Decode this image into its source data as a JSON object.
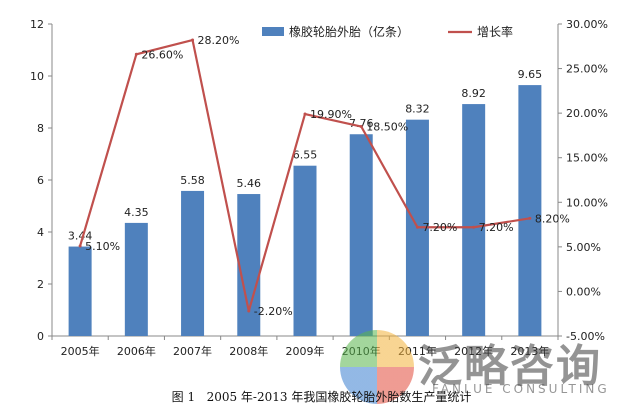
{
  "chart_data": {
    "type": "bar",
    "categories": [
      "2005年",
      "2006年",
      "2007年",
      "2008年",
      "2009年",
      "2010年",
      "2011年",
      "2012年",
      "2013年"
    ],
    "series": [
      {
        "name": "橡胶轮胎外胎（亿条）",
        "type": "bar",
        "axis": "left",
        "color": "#4f81bd",
        "values": [
          3.44,
          4.35,
          5.58,
          5.46,
          6.55,
          7.76,
          8.32,
          8.92,
          9.65
        ],
        "labels": [
          "3.44",
          "4.35",
          "5.58",
          "5.46",
          "6.55",
          "7.76",
          "8.32",
          "8.92",
          "9.65"
        ]
      },
      {
        "name": "增长率",
        "type": "line",
        "axis": "right",
        "color": "#c0504d",
        "values": [
          5.1,
          26.6,
          28.2,
          -2.2,
          19.9,
          18.5,
          7.2,
          7.2,
          8.2
        ],
        "labels": [
          "5.10%",
          "26.60%",
          "28.20%",
          "-2.20%",
          "19.90%",
          "18.50%",
          "7.20%",
          "7.20%",
          "8.20%"
        ]
      }
    ],
    "ylim_left": [
      0,
      12
    ],
    "yticks_left": [
      "0",
      "2",
      "4",
      "6",
      "8",
      "10",
      "12"
    ],
    "ylim_right": [
      -5,
      30
    ],
    "yticks_right": [
      "-5.00%",
      "0.00%",
      "5.00%",
      "10.00%",
      "15.00%",
      "20.00%",
      "25.00%",
      "30.00%"
    ],
    "grid": false,
    "legend": "top"
  },
  "caption": "图 1   2005 年-2013 年我国橡胶轮胎外胎数生产量统计",
  "watermark": {
    "text": "泛略咨询",
    "sub": "FANLUE CONSULTING"
  }
}
